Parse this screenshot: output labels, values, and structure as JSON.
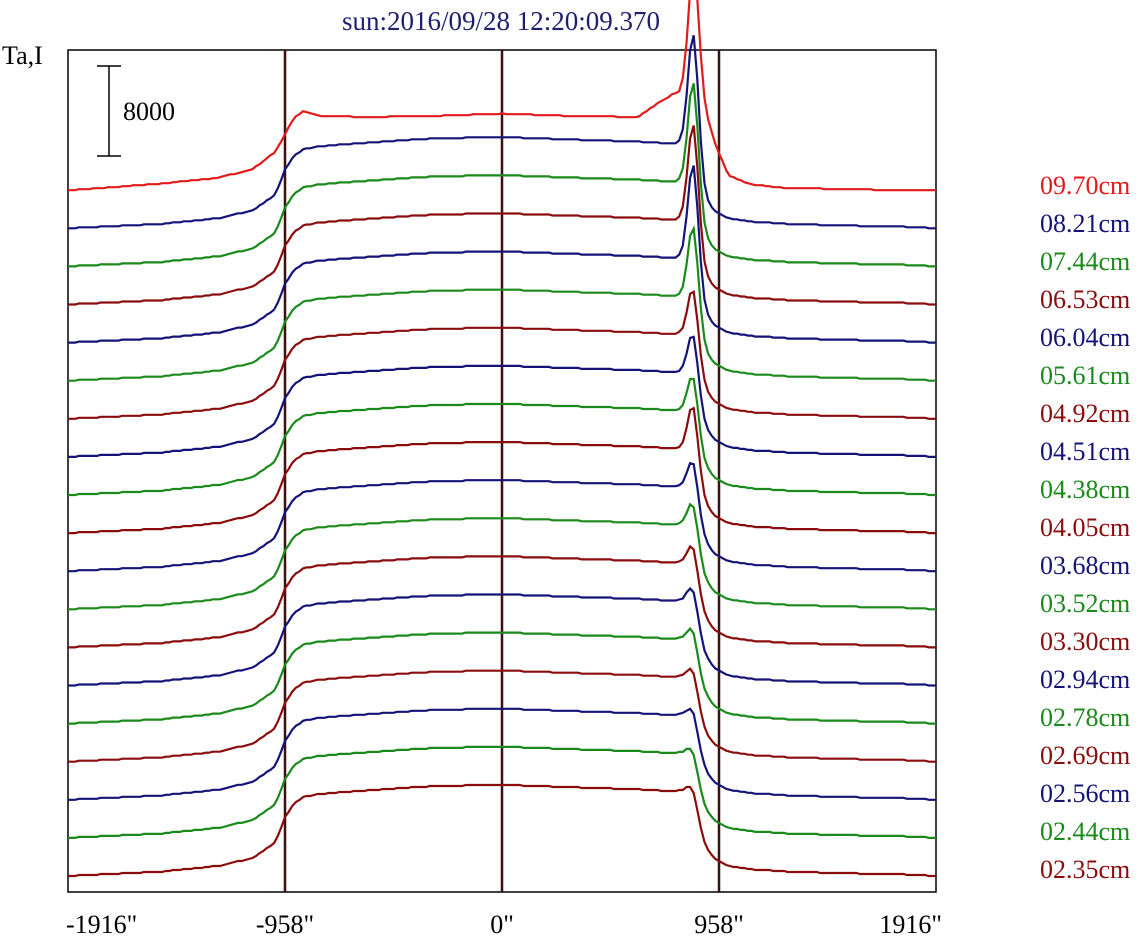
{
  "chart_data": {
    "type": "line",
    "title": "sun:2016/09/28 12:20:09.370",
    "ylabel": "Ta,I",
    "scale_bar_label": "8000",
    "scale_bar_value": 8000,
    "x_ticks": [
      {
        "value": -1916,
        "label": "-1916\""
      },
      {
        "value": -958,
        "label": "-958\""
      },
      {
        "value": 0,
        "label": "0\""
      },
      {
        "value": 958,
        "label": "958\""
      },
      {
        "value": 1916,
        "label": "1916\""
      }
    ],
    "xlim": [
      -1916,
      1916
    ],
    "vertical_markers": [
      -958,
      0,
      958
    ],
    "marker_color": "#3a1010",
    "offset_per_trace": 2200,
    "profile_x": [
      -1916,
      -1760,
      -1500,
      -1250,
      -1100,
      -1000,
      -958,
      -920,
      -880,
      -800,
      -600,
      -300,
      0,
      300,
      600,
      700,
      760,
      790,
      820,
      845,
      870,
      900,
      940,
      1000,
      1100,
      1250,
      1500,
      1760,
      1916
    ],
    "series": [
      {
        "name": "02.35cm",
        "color": "#8b0c0c",
        "peak": 1500,
        "profile": [
          0,
          150,
          400,
          900,
          1600,
          3000,
          5200,
          6400,
          7000,
          7300,
          7600,
          8000,
          8100,
          7900,
          7700,
          7600,
          7500,
          7600,
          7200,
          6000,
          4200,
          2600,
          1500,
          900,
          600,
          400,
          250,
          150,
          0
        ]
      },
      {
        "name": "02.44cm",
        "color": "#1a8a1a",
        "peak": 1500,
        "profile": [
          0,
          150,
          400,
          900,
          1600,
          3000,
          5200,
          6400,
          7000,
          7300,
          7600,
          8000,
          8100,
          7900,
          7700,
          7600,
          7500,
          7600,
          7200,
          6000,
          4200,
          2600,
          1500,
          900,
          600,
          400,
          250,
          150,
          0
        ]
      },
      {
        "name": "02.56cm",
        "color": "#141478",
        "peak": 1700,
        "profile": [
          0,
          150,
          400,
          900,
          1600,
          3000,
          5200,
          6400,
          7000,
          7300,
          7600,
          8000,
          8100,
          7900,
          7700,
          7600,
          7500,
          7600,
          7200,
          6000,
          4200,
          2600,
          1500,
          900,
          600,
          400,
          250,
          150,
          0
        ]
      },
      {
        "name": "02.69cm",
        "color": "#8b0c0c",
        "peak": 1900,
        "profile": [
          0,
          150,
          400,
          900,
          1600,
          3000,
          5200,
          6400,
          7000,
          7300,
          7600,
          8000,
          8100,
          7900,
          7700,
          7600,
          7500,
          7600,
          7200,
          6000,
          4200,
          2600,
          1500,
          900,
          600,
          400,
          250,
          150,
          0
        ]
      },
      {
        "name": "02.78cm",
        "color": "#1a8a1a",
        "peak": 2100,
        "profile": [
          0,
          150,
          400,
          900,
          1600,
          3000,
          5200,
          6400,
          7000,
          7300,
          7600,
          8000,
          8100,
          7900,
          7700,
          7600,
          7500,
          7600,
          7200,
          6000,
          4200,
          2600,
          1500,
          900,
          600,
          400,
          250,
          150,
          0
        ]
      },
      {
        "name": "02.94cm",
        "color": "#141478",
        "peak": 2400,
        "profile": [
          0,
          150,
          400,
          900,
          1600,
          3000,
          5200,
          6400,
          7000,
          7300,
          7600,
          8000,
          8100,
          7900,
          7700,
          7600,
          7500,
          7600,
          7200,
          6000,
          4200,
          2600,
          1500,
          900,
          600,
          400,
          250,
          150,
          0
        ]
      },
      {
        "name": "03.30cm",
        "color": "#8b0c0c",
        "peak": 2800,
        "profile": [
          0,
          150,
          400,
          900,
          1600,
          3000,
          5200,
          6400,
          7000,
          7300,
          7600,
          8000,
          8100,
          7900,
          7700,
          7600,
          7500,
          7600,
          7200,
          6000,
          4200,
          2600,
          1500,
          900,
          600,
          400,
          250,
          150,
          0
        ]
      },
      {
        "name": "03.52cm",
        "color": "#1a8a1a",
        "peak": 3200,
        "profile": [
          0,
          150,
          400,
          900,
          1600,
          3000,
          5200,
          6400,
          7000,
          7300,
          7600,
          8000,
          8100,
          7900,
          7700,
          7600,
          7500,
          7600,
          7200,
          6000,
          4200,
          2600,
          1500,
          900,
          600,
          400,
          250,
          150,
          0
        ]
      },
      {
        "name": "03.68cm",
        "color": "#141478",
        "peak": 3600,
        "profile": [
          0,
          150,
          400,
          900,
          1600,
          3000,
          5200,
          6400,
          7000,
          7300,
          7600,
          8000,
          8100,
          7900,
          7700,
          7600,
          7500,
          7600,
          7200,
          6000,
          4200,
          2600,
          1500,
          900,
          600,
          400,
          250,
          150,
          0
        ]
      },
      {
        "name": "04.05cm",
        "color": "#8b0c0c",
        "peak": 5200,
        "profile": [
          0,
          150,
          400,
          900,
          1600,
          3000,
          5200,
          6400,
          7000,
          7300,
          7600,
          8000,
          8100,
          7900,
          7700,
          7600,
          7500,
          7600,
          7200,
          6000,
          4200,
          2600,
          1500,
          900,
          600,
          400,
          250,
          150,
          0
        ]
      },
      {
        "name": "04.38cm",
        "color": "#1a8a1a",
        "peak": 4400,
        "profile": [
          0,
          150,
          400,
          900,
          1600,
          3000,
          5200,
          6400,
          7000,
          7300,
          7600,
          8000,
          8100,
          7900,
          7700,
          7600,
          7500,
          7600,
          7200,
          6000,
          4200,
          2600,
          1500,
          900,
          600,
          400,
          250,
          150,
          0
        ]
      },
      {
        "name": "04.51cm",
        "color": "#141478",
        "peak": 4800,
        "profile": [
          0,
          150,
          400,
          900,
          1600,
          3000,
          5200,
          6400,
          7000,
          7300,
          7600,
          8000,
          8100,
          7900,
          7700,
          7600,
          7500,
          7600,
          7200,
          6000,
          4200,
          2600,
          1500,
          900,
          600,
          400,
          250,
          150,
          0
        ]
      },
      {
        "name": "04.92cm",
        "color": "#8b0c0c",
        "peak": 5400,
        "profile": [
          0,
          150,
          400,
          900,
          1600,
          3000,
          5200,
          6400,
          7000,
          7300,
          7600,
          8000,
          8100,
          7900,
          7700,
          7600,
          7500,
          7600,
          7200,
          6000,
          4200,
          2600,
          1500,
          900,
          600,
          400,
          250,
          150,
          0
        ]
      },
      {
        "name": "05.61cm",
        "color": "#1a8a1a",
        "peak": 7600,
        "profile": [
          0,
          150,
          400,
          900,
          1600,
          3000,
          5200,
          6400,
          7000,
          7300,
          7600,
          8000,
          8100,
          7900,
          7700,
          7600,
          7500,
          7600,
          7200,
          6000,
          4200,
          2600,
          1500,
          900,
          600,
          400,
          250,
          150,
          0
        ]
      },
      {
        "name": "06.04cm",
        "color": "#141478",
        "peak": 9800,
        "profile": [
          0,
          150,
          400,
          900,
          1600,
          3000,
          5200,
          6400,
          7000,
          7300,
          7600,
          8000,
          8100,
          7900,
          7700,
          7600,
          7500,
          7600,
          7200,
          6000,
          4200,
          2600,
          1500,
          900,
          600,
          400,
          250,
          150,
          0
        ]
      },
      {
        "name": "06.53cm",
        "color": "#8b0c0c",
        "peak": 10000,
        "profile": [
          0,
          150,
          400,
          900,
          1600,
          3000,
          5200,
          6400,
          7000,
          7300,
          7600,
          8000,
          8100,
          7900,
          7700,
          7600,
          7500,
          7600,
          7200,
          6000,
          4200,
          2600,
          1500,
          900,
          600,
          400,
          250,
          150,
          0
        ]
      },
      {
        "name": "07.44cm",
        "color": "#1a8a1a",
        "peak": 10400,
        "profile": [
          0,
          150,
          400,
          900,
          1600,
          3000,
          5200,
          6400,
          7000,
          7300,
          7600,
          8000,
          8100,
          7900,
          7700,
          7600,
          7500,
          7600,
          7200,
          6000,
          4200,
          2600,
          1500,
          900,
          600,
          400,
          250,
          150,
          0
        ]
      },
      {
        "name": "08.21cm",
        "color": "#141478",
        "peak": 11300,
        "profile": [
          0,
          150,
          400,
          900,
          1600,
          3000,
          5200,
          6400,
          7000,
          7300,
          7600,
          8000,
          8100,
          7900,
          7700,
          7600,
          7500,
          7600,
          7200,
          6000,
          4200,
          2600,
          1500,
          900,
          600,
          400,
          250,
          150,
          0
        ]
      },
      {
        "name": "09.70cm",
        "color": "#e31a1a",
        "peak": 11200,
        "profile": [
          0,
          200,
          600,
          1100,
          1900,
          3400,
          5000,
          6400,
          7000,
          6600,
          6500,
          6600,
          6800,
          6600,
          6500,
          7900,
          8600,
          8600,
          8600,
          8600,
          8600,
          6800,
          4200,
          1300,
          500,
          200,
          100,
          0,
          0
        ]
      }
    ]
  }
}
